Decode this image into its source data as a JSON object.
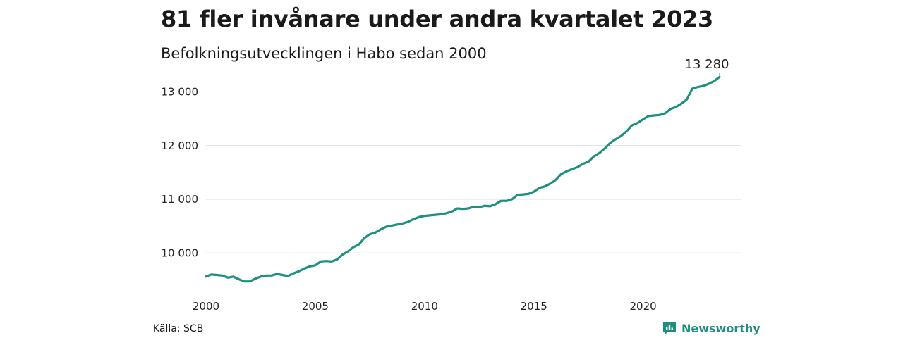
{
  "title": "81 fler invånare under andra kvartalet 2023",
  "subtitle": "Befolkningsutvecklingen i Habo sedan 2000",
  "source": "Källa: SCB",
  "brand": {
    "name": "Newsworthy",
    "icon": "bar-chart-icon",
    "color": "#1e8e7e"
  },
  "chart_data": {
    "type": "line",
    "title": "81 fler invånare under andra kvartalet 2023",
    "subtitle": "Befolkningsutvecklingen i Habo sedan 2000",
    "xlabel": "",
    "ylabel": "",
    "xlim": [
      2000,
      2024.5
    ],
    "ylim": [
      9400,
      13400
    ],
    "grid": true,
    "line_color": "#1e9080",
    "x_ticks": [
      {
        "value": 2000,
        "label": "2000"
      },
      {
        "value": 2005,
        "label": "2005"
      },
      {
        "value": 2010,
        "label": "2010"
      },
      {
        "value": 2015,
        "label": "2015"
      },
      {
        "value": 2020,
        "label": "2020"
      }
    ],
    "y_ticks": [
      {
        "value": 10000,
        "label": "10 000"
      },
      {
        "value": 11000,
        "label": "11 000"
      },
      {
        "value": 12000,
        "label": "12 000"
      },
      {
        "value": 13000,
        "label": "13 000"
      }
    ],
    "end_label": "13 280",
    "series": [
      {
        "x": [
          2000.0,
          2000.25,
          2000.5,
          2000.75,
          2001.0,
          2001.25,
          2001.5,
          2001.75,
          2002.0,
          2002.25,
          2002.5,
          2002.75,
          2003.0,
          2003.25,
          2003.5,
          2003.75,
          2004.0,
          2004.25,
          2004.5,
          2004.75,
          2005.0,
          2005.25,
          2005.5,
          2005.75,
          2006.0,
          2006.25,
          2006.5,
          2006.75,
          2007.0,
          2007.25,
          2007.5,
          2007.75,
          2008.0,
          2008.25,
          2008.5,
          2008.75,
          2009.0,
          2009.25,
          2009.5,
          2009.75,
          2010.0,
          2010.25,
          2010.5,
          2010.75,
          2011.0,
          2011.25,
          2011.5,
          2011.75,
          2012.0,
          2012.25,
          2012.5,
          2012.75,
          2013.0,
          2013.25,
          2013.5,
          2013.75,
          2014.0,
          2014.25,
          2014.5,
          2014.75,
          2015.0,
          2015.25,
          2015.5,
          2015.75,
          2016.0,
          2016.25,
          2016.5,
          2016.75,
          2017.0,
          2017.25,
          2017.5,
          2017.75,
          2018.0,
          2018.25,
          2018.5,
          2018.75,
          2019.0,
          2019.25,
          2019.5,
          2019.75,
          2020.0,
          2020.25,
          2020.5,
          2020.75,
          2021.0,
          2021.25,
          2021.5,
          2021.75,
          2022.0,
          2022.25,
          2022.5,
          2022.75,
          2023.0,
          2023.25,
          2023.5
        ],
        "values": [
          9560,
          9600,
          9590,
          9580,
          9540,
          9560,
          9510,
          9470,
          9470,
          9520,
          9560,
          9580,
          9580,
          9610,
          9590,
          9570,
          9620,
          9660,
          9710,
          9750,
          9770,
          9840,
          9850,
          9840,
          9880,
          9970,
          10030,
          10110,
          10160,
          10280,
          10350,
          10380,
          10440,
          10490,
          10510,
          10530,
          10550,
          10580,
          10630,
          10670,
          10690,
          10700,
          10710,
          10720,
          10740,
          10770,
          10830,
          10820,
          10830,
          10860,
          10850,
          10880,
          10870,
          10910,
          10970,
          10970,
          11000,
          11080,
          11090,
          11100,
          11140,
          11210,
          11240,
          11290,
          11360,
          11470,
          11520,
          11560,
          11600,
          11660,
          11700,
          11800,
          11860,
          11950,
          12050,
          12120,
          12180,
          12270,
          12380,
          12420,
          12490,
          12550,
          12560,
          12570,
          12600,
          12680,
          12720,
          12780,
          12860,
          13060,
          13090,
          13110,
          13150,
          13200,
          13280
        ]
      }
    ]
  }
}
